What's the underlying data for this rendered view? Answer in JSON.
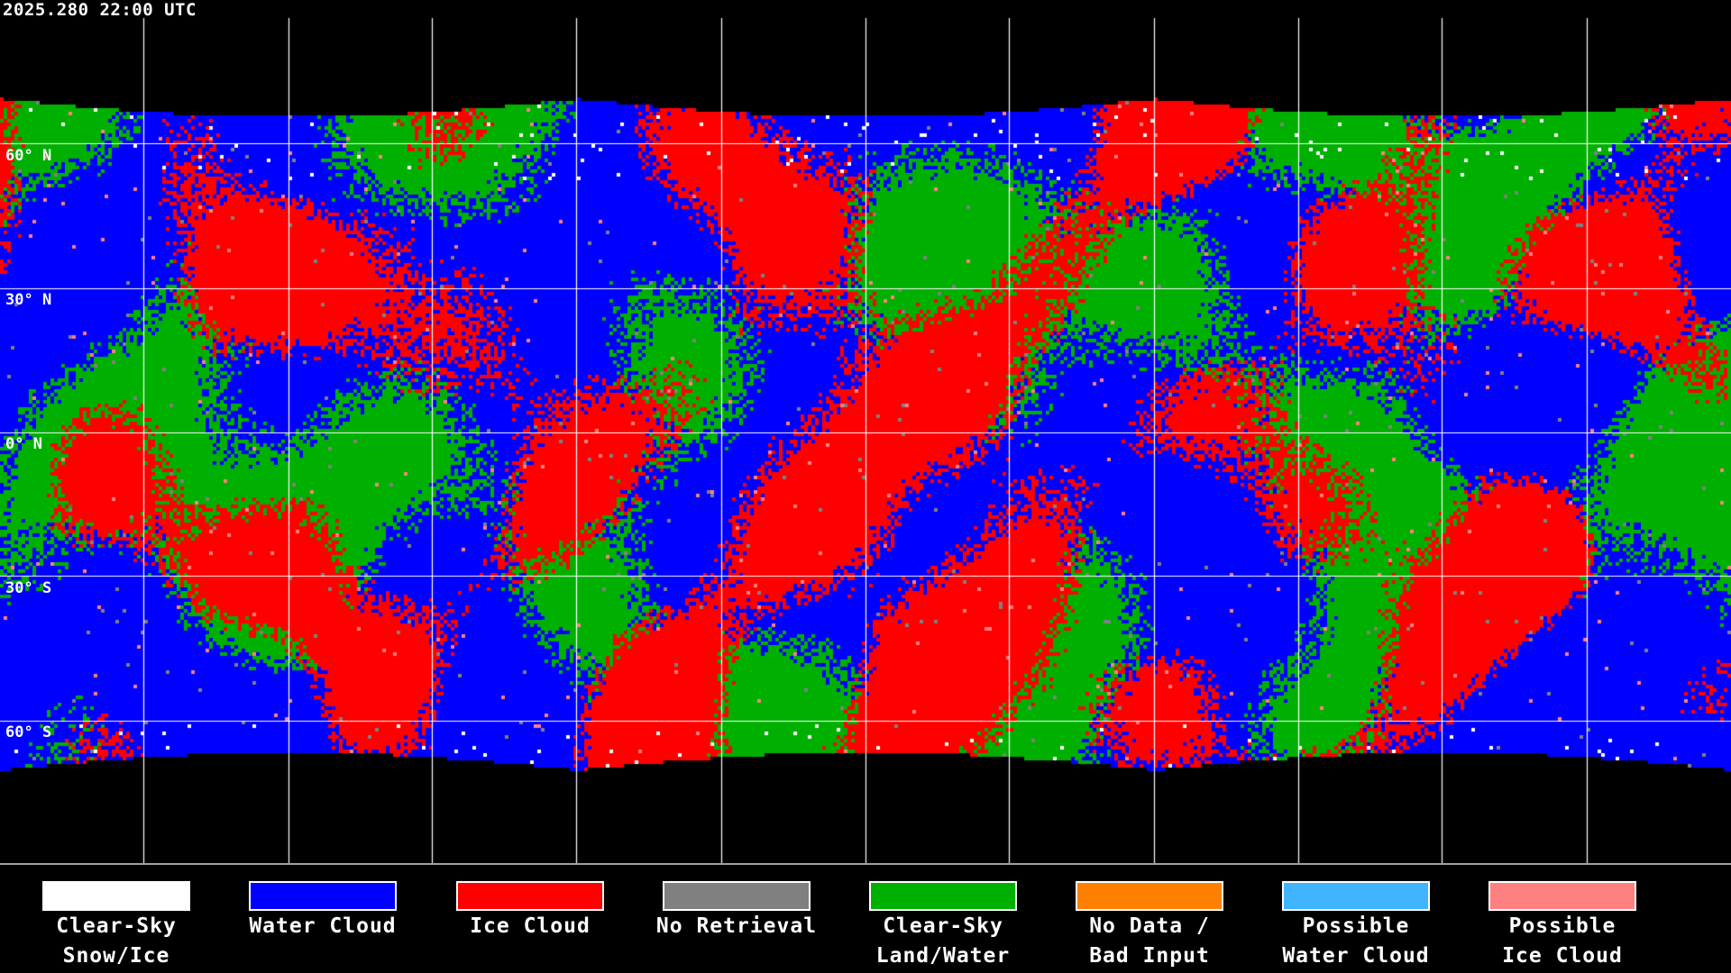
{
  "header": {
    "timestamp": "2025.280 22:00 UTC"
  },
  "map": {
    "latitude_labels": [
      "60° N",
      "30° N",
      "0° N",
      "30° S",
      "60° S"
    ],
    "colors": {
      "clear_sky_snow_ice": "#ffffff",
      "water_cloud": "#0000ff",
      "ice_cloud": "#ff0000",
      "no_retrieval": "#808080",
      "clear_sky_land_water": "#00b000",
      "no_data": "#ff8000",
      "possible_water_cloud": "#40b4ff",
      "possible_ice_cloud": "#ff8080"
    },
    "gridline_color": "#ffffff"
  },
  "legend": {
    "items": [
      {
        "line1": "Clear-Sky",
        "line2": "Snow/Ice",
        "color": "#ffffff"
      },
      {
        "line1": "Water Cloud",
        "line2": "",
        "color": "#0000ff"
      },
      {
        "line1": "Ice Cloud",
        "line2": "",
        "color": "#ff0000"
      },
      {
        "line1": "No Retrieval",
        "line2": "",
        "color": "#808080"
      },
      {
        "line1": "Clear-Sky",
        "line2": "Land/Water",
        "color": "#00b000"
      },
      {
        "line1": "No Data /",
        "line2": "Bad Input",
        "color": "#ff8000"
      },
      {
        "line1": "Possible",
        "line2": "Water Cloud",
        "color": "#40b4ff"
      },
      {
        "line1": "Possible",
        "line2": "Ice Cloud",
        "color": "#ff8080"
      }
    ]
  }
}
